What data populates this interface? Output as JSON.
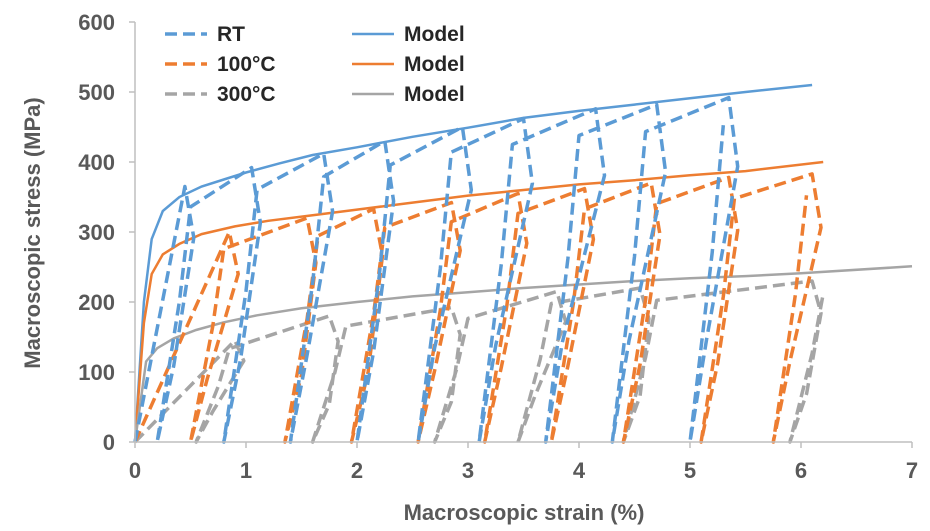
{
  "chart_data": {
    "type": "line",
    "xlabel": "Macroscopic strain (%)",
    "ylabel": "Macroscopic stress (MPa)",
    "xlim": [
      0,
      7
    ],
    "ylim": [
      0,
      600
    ],
    "xticks": [
      "0",
      "1",
      "2",
      "3",
      "4",
      "5",
      "6",
      "7"
    ],
    "yticks": [
      "0",
      "100",
      "200",
      "300",
      "400",
      "500",
      "600"
    ],
    "grid": false,
    "legend_position": "top-left",
    "legend": [
      {
        "label": "RT",
        "series": "rt-exp"
      },
      {
        "label": "Model",
        "series": "rt-model"
      },
      {
        "label": "100°C",
        "series": "c100-exp"
      },
      {
        "label": "Model",
        "series": "c100-model"
      },
      {
        "label": "300°C",
        "series": "c300-exp"
      },
      {
        "label": "Model",
        "series": "c300-model"
      }
    ],
    "series": [
      {
        "id": "rt-model",
        "name": "Model",
        "style": "solid",
        "color": "#5B9BD5",
        "x": [
          0,
          0.08,
          0.15,
          0.25,
          0.4,
          0.6,
          0.8,
          1.0,
          1.3,
          1.6,
          2.0,
          2.5,
          3.0,
          3.5,
          4.0,
          4.5,
          5.0,
          5.5,
          6.1
        ],
        "y": [
          0,
          200,
          290,
          330,
          350,
          365,
          375,
          385,
          398,
          410,
          421,
          436,
          449,
          463,
          473,
          482,
          491,
          500,
          510
        ]
      },
      {
        "id": "c100-model",
        "name": "Model",
        "style": "solid",
        "color": "#ED7D31",
        "x": [
          0,
          0.08,
          0.15,
          0.25,
          0.4,
          0.6,
          0.9,
          1.2,
          1.6,
          2.0,
          2.5,
          3.0,
          3.5,
          4.0,
          4.5,
          5.0,
          5.5,
          6.2
        ],
        "y": [
          0,
          170,
          240,
          268,
          283,
          297,
          308,
          316,
          324,
          332,
          342,
          352,
          360,
          368,
          374,
          381,
          387,
          400
        ]
      },
      {
        "id": "c300-model",
        "name": "Model",
        "style": "solid",
        "color": "#A5A5A5",
        "x": [
          0,
          0.1,
          0.2,
          0.35,
          0.55,
          0.8,
          1.1,
          1.5,
          2.0,
          2.5,
          3.0,
          3.5,
          4.0,
          4.5,
          5.0,
          5.5,
          6.0,
          7.0
        ],
        "y": [
          0,
          115,
          134,
          148,
          160,
          171,
          181,
          191,
          200,
          208,
          214,
          220,
          225,
          230,
          234,
          237,
          241,
          251
        ]
      },
      {
        "id": "rt-exp",
        "name": "RT",
        "style": "dashed",
        "color": "#5B9BD5",
        "x": [
          0,
          0.1,
          0.2,
          0.3,
          0.5,
          0.6,
          0.8,
          0.9,
          1.0,
          1.1,
          1.3,
          1.5,
          1.6,
          1.7,
          1.9,
          2.1,
          2.2,
          2.35,
          2.5,
          2.7,
          2.8,
          2.95,
          3.1,
          3.25,
          3.4,
          3.55,
          3.7,
          3.85,
          4.0,
          4.2,
          4.3,
          4.45,
          4.6,
          4.75,
          4.9,
          5.1,
          5.3,
          5.35
        ],
        "y": [
          0,
          140,
          280,
          360,
          370,
          300,
          380,
          390,
          392,
          385,
          405,
          412,
          390,
          375,
          420,
          428,
          400,
          430,
          440,
          450,
          445,
          400,
          455,
          462,
          420,
          455,
          470,
          472,
          430,
          470,
          478,
          480,
          400,
          485,
          490,
          492,
          470,
          400
        ]
      },
      {
        "id": "c100-exp",
        "name": "100°C",
        "style": "dashed",
        "color": "#ED7D31",
        "x": [
          0,
          0.1,
          0.2,
          0.3,
          0.6,
          0.9,
          1.0,
          1.5,
          1.6,
          2.1,
          2.2,
          2.7,
          2.9,
          3.3,
          3.5,
          3.9,
          4.1,
          4.5,
          4.7,
          5.1,
          5.4,
          5.9,
          6.1
        ],
        "y": [
          0,
          150,
          230,
          250,
          262,
          300,
          305,
          320,
          315,
          333,
          330,
          340,
          345,
          352,
          355,
          360,
          362,
          366,
          370,
          375,
          378,
          383,
          320
        ]
      },
      {
        "id": "c300-exp",
        "name": "300°C",
        "style": "dashed",
        "color": "#A5A5A5",
        "x": [
          0,
          0.05,
          0.15,
          0.3,
          0.5,
          0.9,
          1.1,
          1.4,
          1.8,
          2.1,
          2.6,
          2.9,
          3.1,
          3.5,
          3.8,
          4.2,
          4.5,
          5.0,
          5.5,
          6.0,
          6.1
        ],
        "y": [
          0,
          80,
          130,
          135,
          140,
          145,
          150,
          165,
          180,
          185,
          190,
          192,
          195,
          205,
          215,
          218,
          220,
          225,
          228,
          230,
          210
        ]
      }
    ],
    "unload_reload_cycles": {
      "rt-exp": [
        {
          "peak_x": 0.45,
          "peak_y": 365,
          "zero_x": 0.2
        },
        {
          "peak_x": 1.05,
          "peak_y": 392,
          "zero_x": 0.8
        },
        {
          "peak_x": 1.7,
          "peak_y": 412,
          "zero_x": 1.4
        },
        {
          "peak_x": 2.25,
          "peak_y": 430,
          "zero_x": 2.0
        },
        {
          "peak_x": 2.95,
          "peak_y": 450,
          "zero_x": 2.55
        },
        {
          "peak_x": 3.5,
          "peak_y": 462,
          "zero_x": 3.1
        },
        {
          "peak_x": 4.15,
          "peak_y": 476,
          "zero_x": 3.7
        },
        {
          "peak_x": 4.7,
          "peak_y": 482,
          "zero_x": 4.3
        },
        {
          "peak_x": 5.35,
          "peak_y": 492,
          "zero_x": 5.0
        }
      ],
      "c100-exp": [
        {
          "peak_x": 0.85,
          "peak_y": 300,
          "zero_x": 0.5
        },
        {
          "peak_x": 1.55,
          "peak_y": 320,
          "zero_x": 1.35
        },
        {
          "peak_x": 2.15,
          "peak_y": 333,
          "zero_x": 1.95
        },
        {
          "peak_x": 2.85,
          "peak_y": 342,
          "zero_x": 2.55
        },
        {
          "peak_x": 3.45,
          "peak_y": 355,
          "zero_x": 3.15
        },
        {
          "peak_x": 4.05,
          "peak_y": 362,
          "zero_x": 3.75
        },
        {
          "peak_x": 4.65,
          "peak_y": 370,
          "zero_x": 4.4
        },
        {
          "peak_x": 5.35,
          "peak_y": 378,
          "zero_x": 5.1
        },
        {
          "peak_x": 6.1,
          "peak_y": 383,
          "zero_x": 5.75
        }
      ],
      "c300-exp": [
        {
          "peak_x": 0.9,
          "peak_y": 145,
          "zero_x": 0.55
        },
        {
          "peak_x": 1.75,
          "peak_y": 180,
          "zero_x": 1.6
        },
        {
          "peak_x": 2.85,
          "peak_y": 192,
          "zero_x": 2.7
        },
        {
          "peak_x": 3.8,
          "peak_y": 215,
          "zero_x": 3.45
        },
        {
          "peak_x": 4.55,
          "peak_y": 220,
          "zero_x": 4.4
        },
        {
          "peak_x": 6.1,
          "peak_y": 230,
          "zero_x": 5.9
        }
      ]
    }
  }
}
